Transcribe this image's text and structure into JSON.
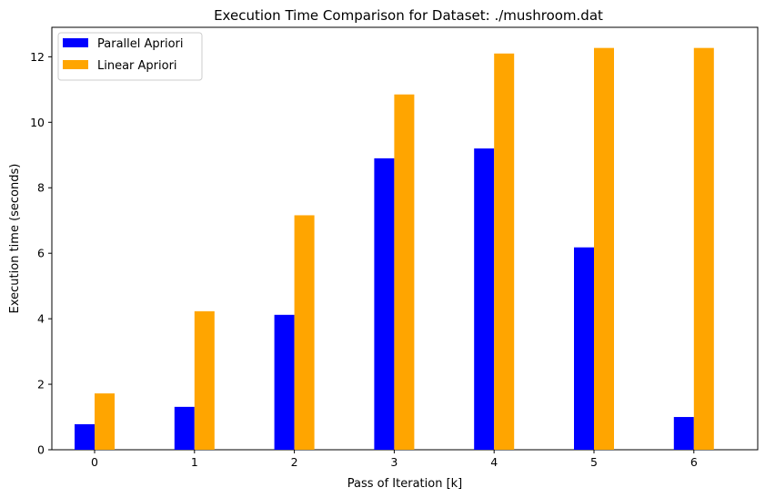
{
  "chart_data": {
    "type": "bar",
    "title": "Execution Time Comparison for Dataset: ./mushroom.dat",
    "xlabel": "Pass of Iteration [k]",
    "ylabel": "Execution time (seconds)",
    "categories": [
      "0",
      "1",
      "2",
      "3",
      "4",
      "5",
      "6"
    ],
    "yticks": [
      "0",
      "2",
      "4",
      "6",
      "8",
      "10",
      "12"
    ],
    "ylim": [
      0,
      12.9
    ],
    "grid": false,
    "legend_position": "top-left",
    "series": [
      {
        "name": "Parallel Apriori",
        "color": "#0000ff",
        "values": [
          0.78,
          1.31,
          4.12,
          8.9,
          9.2,
          6.18,
          1.0
        ]
      },
      {
        "name": "Linear Apriori",
        "color": "#ffa500",
        "values": [
          1.72,
          4.23,
          7.16,
          10.85,
          12.1,
          12.27,
          12.27
        ]
      }
    ]
  }
}
